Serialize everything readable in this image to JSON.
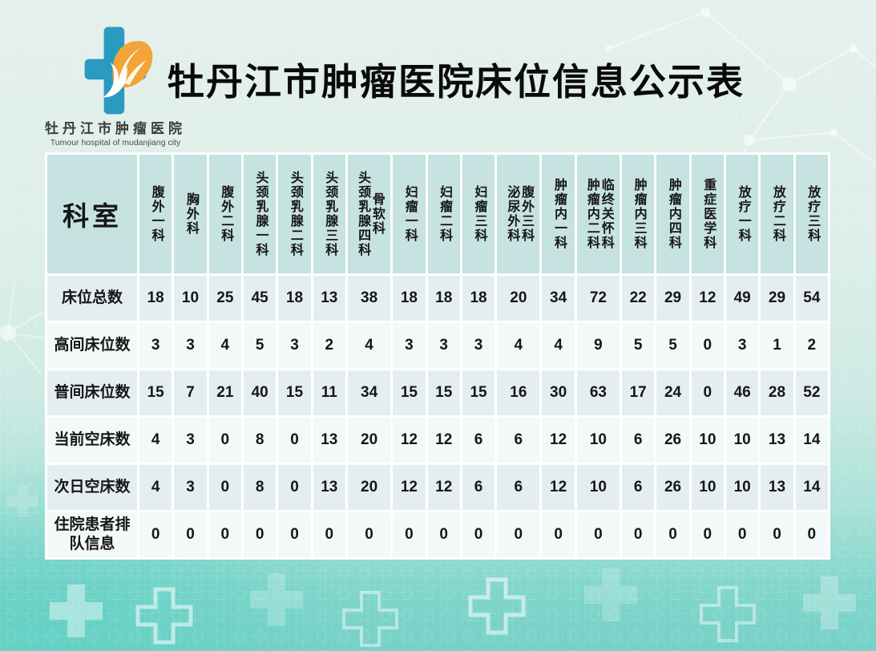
{
  "header": {
    "title": "牡丹江市肿瘤医院床位信息公示表"
  },
  "logo": {
    "icon": "medical-cross-leaf-dove-logo",
    "hospital_name_cn": "牡丹江市肿瘤医院",
    "hospital_name_en": "Tumour hospital of mudanjiang city"
  },
  "table": {
    "corner_label": "科室",
    "departments": [
      {
        "names": [
          "腹外一科"
        ]
      },
      {
        "names": [
          "胸外科"
        ]
      },
      {
        "names": [
          "腹外二科"
        ]
      },
      {
        "names": [
          "头颈乳腺一科"
        ]
      },
      {
        "names": [
          "头颈乳腺二科"
        ]
      },
      {
        "names": [
          "头颈乳腺三科"
        ]
      },
      {
        "names": [
          "头颈乳腺四科",
          "骨软科"
        ]
      },
      {
        "names": [
          "妇瘤一科"
        ]
      },
      {
        "names": [
          "妇瘤二科"
        ]
      },
      {
        "names": [
          "妇瘤三科"
        ]
      },
      {
        "names": [
          "泌尿外科",
          "腹外三科"
        ]
      },
      {
        "names": [
          "肿瘤内一科"
        ]
      },
      {
        "names": [
          "肿瘤内二科",
          "临终关怀科"
        ]
      },
      {
        "names": [
          "肿瘤内三科"
        ]
      },
      {
        "names": [
          "肿瘤内四科"
        ]
      },
      {
        "names": [
          "重症医学科"
        ]
      },
      {
        "names": [
          "放疗一科"
        ]
      },
      {
        "names": [
          "放疗二科"
        ]
      },
      {
        "names": [
          "放疗三科"
        ]
      }
    ],
    "rows": [
      {
        "label": "床位总数",
        "values": [
          18,
          10,
          25,
          45,
          18,
          13,
          38,
          18,
          18,
          18,
          20,
          34,
          72,
          22,
          29,
          12,
          49,
          29,
          54
        ]
      },
      {
        "label": "高间床位数",
        "values": [
          3,
          3,
          4,
          5,
          3,
          2,
          4,
          3,
          3,
          3,
          4,
          4,
          9,
          5,
          5,
          0,
          3,
          1,
          2
        ]
      },
      {
        "label": "普间床位数",
        "values": [
          15,
          7,
          21,
          40,
          15,
          11,
          34,
          15,
          15,
          15,
          16,
          30,
          63,
          17,
          24,
          0,
          46,
          28,
          52
        ]
      },
      {
        "label": "当前空床数",
        "values": [
          4,
          3,
          0,
          8,
          0,
          13,
          20,
          12,
          12,
          6,
          6,
          12,
          10,
          6,
          26,
          10,
          10,
          13,
          14
        ]
      },
      {
        "label": "次日空床数",
        "values": [
          4,
          3,
          0,
          8,
          0,
          13,
          20,
          12,
          12,
          6,
          6,
          12,
          10,
          6,
          26,
          10,
          10,
          13,
          14
        ]
      },
      {
        "label": "住院患者排队信息",
        "values": [
          0,
          0,
          0,
          0,
          0,
          0,
          0,
          0,
          0,
          0,
          0,
          0,
          0,
          0,
          0,
          0,
          0,
          0,
          0
        ]
      }
    ]
  },
  "colors": {
    "header_cell": "#c6e2e1",
    "row_shade_dark": "#e4eef0",
    "row_shade_light": "#f3f8f8",
    "text": "#161616",
    "cross_blue": "#2b9ac1",
    "leaf_orange": "#f2a439",
    "title_text": "#0a0a0a",
    "bg_bottom_teal": "#74d0c6"
  }
}
